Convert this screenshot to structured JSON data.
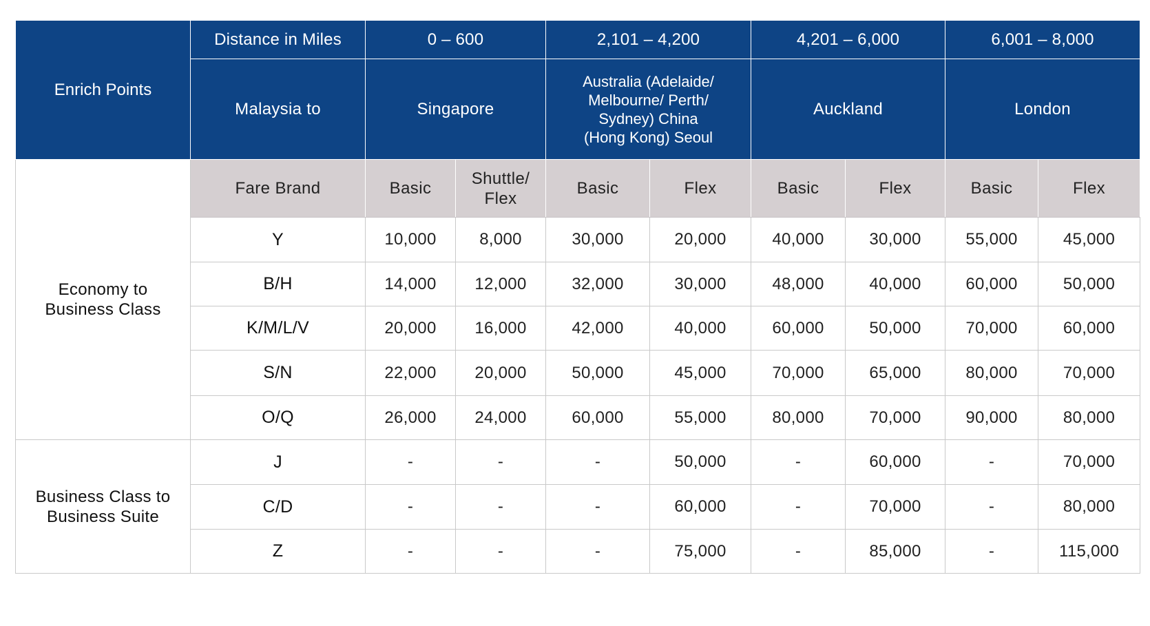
{
  "header": {
    "corner_label": "Enrich Points",
    "distance_label": "Distance in Miles",
    "origin_label": "Malaysia to",
    "zones": [
      {
        "distance": "0 – 600",
        "destination": "Singapore"
      },
      {
        "distance": "2,101 – 4,200",
        "destination": "Australia (Adelaide/ Melbourne/ Perth/ Sydney) China (Hong Kong) Seoul"
      },
      {
        "distance": "4,201 – 6,000",
        "destination": "Auckland"
      },
      {
        "distance": "6,001 – 8,000",
        "destination": "London"
      }
    ],
    "destination_lines": [
      "Australia (Adelaide/",
      "Melbourne/ Perth/",
      "Sydney) China",
      "(Hong Kong) Seoul"
    ]
  },
  "fare_brand": {
    "label": "Fare Brand",
    "columns": [
      "Basic",
      "Shuttle/ Flex",
      "Basic",
      "Flex",
      "Basic",
      "Flex",
      "Basic",
      "Flex"
    ],
    "shuttle_lines": [
      "Shuttle/",
      "Flex"
    ]
  },
  "sections": [
    {
      "label": "Economy to Business Class",
      "label_lines": [
        "Economy to",
        "Business Class"
      ],
      "rows": [
        {
          "code": "Y",
          "values": [
            "10,000",
            "8,000",
            "30,000",
            "20,000",
            "40,000",
            "30,000",
            "55,000",
            "45,000"
          ]
        },
        {
          "code": "B/H",
          "values": [
            "14,000",
            "12,000",
            "32,000",
            "30,000",
            "48,000",
            "40,000",
            "60,000",
            "50,000"
          ]
        },
        {
          "code": "K/M/L/V",
          "values": [
            "20,000",
            "16,000",
            "42,000",
            "40,000",
            "60,000",
            "50,000",
            "70,000",
            "60,000"
          ]
        },
        {
          "code": "S/N",
          "values": [
            "22,000",
            "20,000",
            "50,000",
            "45,000",
            "70,000",
            "65,000",
            "80,000",
            "70,000"
          ]
        },
        {
          "code": "O/Q",
          "values": [
            "26,000",
            "24,000",
            "60,000",
            "55,000",
            "80,000",
            "70,000",
            "90,000",
            "80,000"
          ]
        }
      ]
    },
    {
      "label": "Business Class to Business Suite",
      "label_lines": [
        "Business Class to",
        "Business Suite"
      ],
      "rows": [
        {
          "code": "J",
          "values": [
            "-",
            "-",
            "-",
            "50,000",
            "-",
            "60,000",
            "-",
            "70,000"
          ]
        },
        {
          "code": "C/D",
          "values": [
            "-",
            "-",
            "-",
            "60,000",
            "-",
            "70,000",
            "-",
            "80,000"
          ]
        },
        {
          "code": "Z",
          "values": [
            "-",
            "-",
            "-",
            "75,000",
            "-",
            "85,000",
            "-",
            "115,000"
          ]
        }
      ]
    }
  ],
  "colors": {
    "header_blue": "#0e4485",
    "fare_row_gray": "#d5cfd1",
    "border": "#c9c9c9"
  }
}
